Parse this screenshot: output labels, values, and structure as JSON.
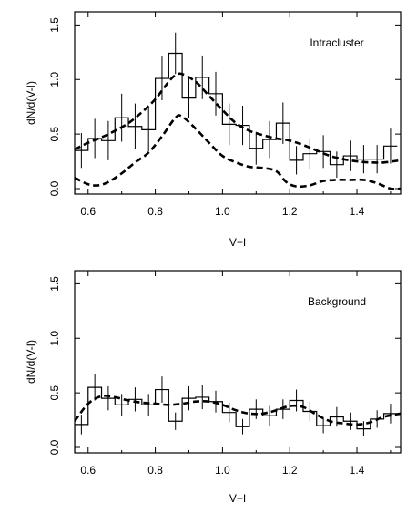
{
  "chart_data": [
    {
      "type": "line",
      "annotation": "Intracluster",
      "xlabel": "V−I",
      "ylabel": "dN/d(V-I)",
      "xlim": [
        0.56,
        1.53
      ],
      "ylim": [
        -0.05,
        1.62
      ],
      "xticks": [
        0.6,
        0.8,
        1.0,
        1.2,
        1.4
      ],
      "xtick_labels": [
        "0.6",
        "0.8",
        "1.0",
        "1.2",
        "1.4"
      ],
      "yticks": [
        0.0,
        0.5,
        1.0,
        1.5
      ],
      "ytick_labels": [
        "0.0",
        "0.5",
        "1.0",
        "1.5"
      ],
      "grid": false,
      "bin_width": 0.04,
      "histogram": {
        "x": [
          0.58,
          0.62,
          0.66,
          0.7,
          0.74,
          0.78,
          0.82,
          0.86,
          0.9,
          0.94,
          0.98,
          1.02,
          1.06,
          1.1,
          1.14,
          1.18,
          1.22,
          1.26,
          1.3,
          1.34,
          1.38,
          1.42,
          1.46,
          1.5
        ],
        "values": [
          0.35,
          0.46,
          0.44,
          0.65,
          0.57,
          0.54,
          1.01,
          1.24,
          0.83,
          1.02,
          0.87,
          0.59,
          0.58,
          0.37,
          0.45,
          0.6,
          0.26,
          0.32,
          0.34,
          0.22,
          0.3,
          0.27,
          0.27,
          0.39
        ],
        "errors": [
          0.16,
          0.18,
          0.18,
          0.22,
          0.21,
          0.2,
          0.2,
          0.19,
          0.18,
          0.2,
          0.2,
          0.19,
          0.18,
          0.15,
          0.17,
          0.19,
          0.13,
          0.14,
          0.15,
          0.12,
          0.14,
          0.13,
          0.13,
          0.16
        ]
      },
      "series": [
        {
          "style": "dashed",
          "x": [
            0.56,
            0.6,
            0.64,
            0.68,
            0.72,
            0.76,
            0.8,
            0.84,
            0.86,
            0.88,
            0.92,
            0.96,
            1.0,
            1.04,
            1.08,
            1.12,
            1.16,
            1.2,
            1.24,
            1.28,
            1.32,
            1.36,
            1.4,
            1.44,
            1.48,
            1.53
          ],
          "y": [
            0.36,
            0.42,
            0.47,
            0.53,
            0.6,
            0.7,
            0.82,
            0.98,
            1.04,
            1.05,
            0.98,
            0.85,
            0.72,
            0.6,
            0.53,
            0.49,
            0.46,
            0.44,
            0.4,
            0.35,
            0.3,
            0.27,
            0.25,
            0.24,
            0.24,
            0.26
          ]
        },
        {
          "style": "dashed",
          "x": [
            0.56,
            0.6,
            0.63,
            0.66,
            0.7,
            0.74,
            0.78,
            0.82,
            0.86,
            0.88,
            0.92,
            0.96,
            1.0,
            1.04,
            1.08,
            1.12,
            1.16,
            1.19,
            1.22,
            1.26,
            1.3,
            1.34,
            1.38,
            1.42,
            1.46,
            1.5,
            1.53
          ],
          "y": [
            0.1,
            0.04,
            0.03,
            0.06,
            0.14,
            0.24,
            0.33,
            0.48,
            0.65,
            0.66,
            0.55,
            0.42,
            0.3,
            0.24,
            0.2,
            0.19,
            0.16,
            0.06,
            0.02,
            0.03,
            0.07,
            0.08,
            0.08,
            0.08,
            0.05,
            0.0,
            0.0
          ]
        }
      ]
    },
    {
      "type": "line",
      "annotation": "Background",
      "xlabel": "V−I",
      "ylabel": "dN/d(V-I)",
      "xlim": [
        0.56,
        1.53
      ],
      "ylim": [
        -0.05,
        1.62
      ],
      "xticks": [
        0.6,
        0.8,
        1.0,
        1.2,
        1.4
      ],
      "xtick_labels": [
        "0.6",
        "0.8",
        "1.0",
        "1.2",
        "1.4"
      ],
      "yticks": [
        0.0,
        0.5,
        1.0,
        1.5
      ],
      "ytick_labels": [
        "0.0",
        "0.5",
        "1.0",
        "1.5"
      ],
      "grid": false,
      "bin_width": 0.04,
      "histogram": {
        "x": [
          0.58,
          0.62,
          0.66,
          0.7,
          0.74,
          0.78,
          0.82,
          0.86,
          0.9,
          0.94,
          0.98,
          1.02,
          1.06,
          1.1,
          1.14,
          1.18,
          1.22,
          1.26,
          1.3,
          1.34,
          1.38,
          1.42,
          1.46,
          1.5
        ],
        "values": [
          0.21,
          0.55,
          0.45,
          0.39,
          0.44,
          0.39,
          0.53,
          0.24,
          0.45,
          0.46,
          0.42,
          0.32,
          0.19,
          0.35,
          0.29,
          0.35,
          0.43,
          0.33,
          0.2,
          0.28,
          0.24,
          0.17,
          0.26,
          0.31
        ],
        "errors": [
          0.09,
          0.12,
          0.11,
          0.1,
          0.11,
          0.1,
          0.12,
          0.08,
          0.11,
          0.11,
          0.1,
          0.09,
          0.07,
          0.09,
          0.09,
          0.09,
          0.1,
          0.09,
          0.07,
          0.09,
          0.08,
          0.07,
          0.08,
          0.09
        ]
      },
      "series": [
        {
          "style": "dashed",
          "x": [
            0.56,
            0.6,
            0.64,
            0.68,
            0.72,
            0.76,
            0.8,
            0.84,
            0.88,
            0.92,
            0.96,
            1.0,
            1.04,
            1.08,
            1.12,
            1.16,
            1.2,
            1.24,
            1.28,
            1.32,
            1.36,
            1.4,
            1.44,
            1.48,
            1.53
          ],
          "y": [
            0.24,
            0.4,
            0.47,
            0.46,
            0.43,
            0.41,
            0.4,
            0.39,
            0.4,
            0.42,
            0.42,
            0.39,
            0.34,
            0.31,
            0.31,
            0.34,
            0.38,
            0.37,
            0.3,
            0.24,
            0.22,
            0.21,
            0.23,
            0.28,
            0.31
          ]
        }
      ]
    }
  ]
}
